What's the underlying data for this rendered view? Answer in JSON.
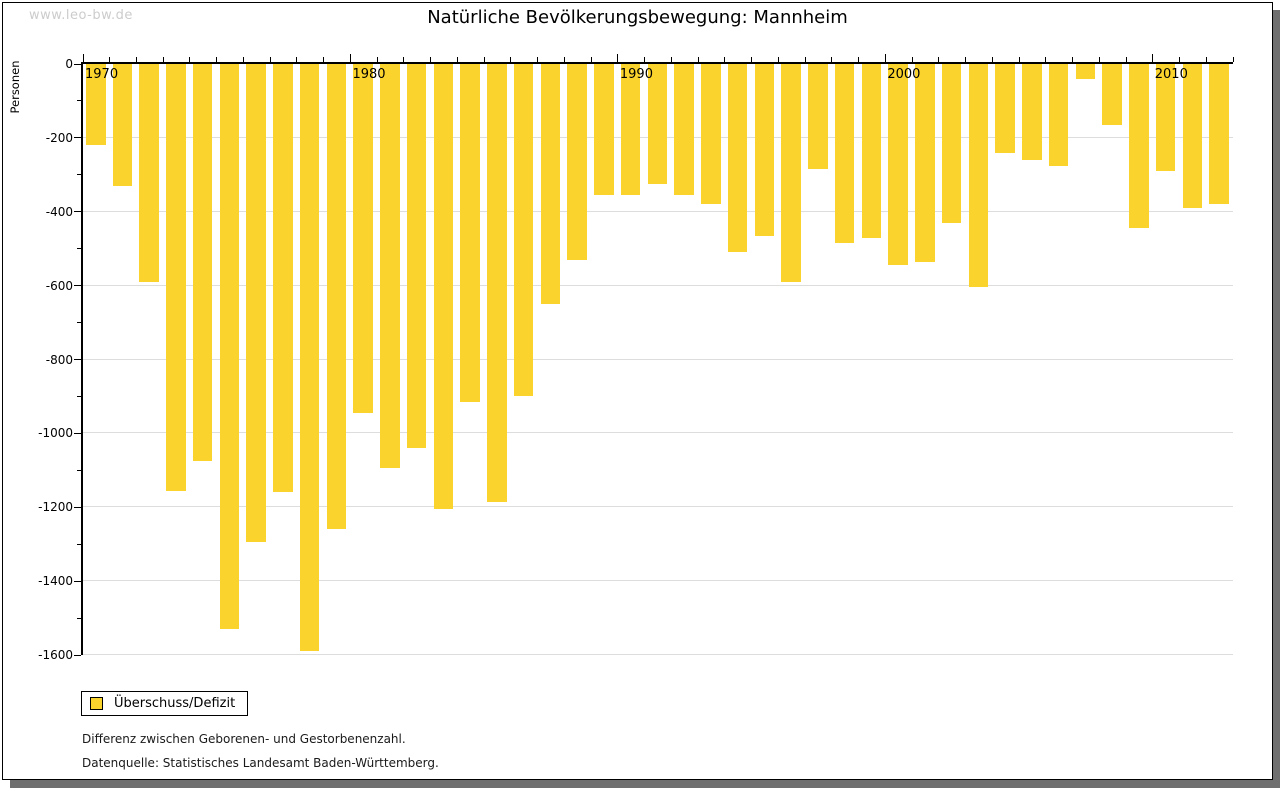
{
  "watermark": "www.leo-bw.de",
  "title": "Natürliche Bevölkerungsbewegung: Mannheim",
  "legend": {
    "label": "Überschuss/Defizit"
  },
  "footnotes": [
    "Differenz zwischen Geborenen- und Gestorbenenzahl.",
    "Datenquelle: Statistisches Landesamt Baden-Württemberg."
  ],
  "colors": {
    "bar": "#fbd32d",
    "grid": "#dddddd",
    "axis": "#000000",
    "text": "#000000",
    "watermark_text": "#cccccc",
    "panel_shadow": "#6f6f6f",
    "background": "#ffffff"
  },
  "chart_data": {
    "type": "bar",
    "title": "Natürliche Bevölkerungsbewegung: Mannheim",
    "xlabel": "",
    "ylabel": "Personen",
    "series_name": "Überschuss/Defizit",
    "ylim": [
      -1600,
      0
    ],
    "y_tick_step": 200,
    "y_minor_tick_step": 100,
    "x_labeled_ticks": [
      1970,
      1980,
      1990,
      2000,
      2010
    ],
    "grid": "horizontal",
    "legend_position": "bottom-left",
    "categories": [
      1970,
      1971,
      1972,
      1973,
      1974,
      1975,
      1976,
      1977,
      1978,
      1979,
      1980,
      1981,
      1982,
      1983,
      1984,
      1985,
      1986,
      1987,
      1988,
      1989,
      1990,
      1991,
      1992,
      1993,
      1994,
      1995,
      1996,
      1997,
      1998,
      1999,
      2000,
      2001,
      2002,
      2003,
      2004,
      2005,
      2006,
      2007,
      2008,
      2009,
      2010,
      2011,
      2012
    ],
    "values": [
      -220,
      -330,
      -590,
      -1155,
      -1075,
      -1530,
      -1295,
      -1160,
      -1590,
      -1260,
      -945,
      -1095,
      -1040,
      -1205,
      -915,
      -1185,
      -900,
      -650,
      -530,
      -355,
      -355,
      -325,
      -355,
      -380,
      -510,
      -465,
      -590,
      -285,
      -485,
      -470,
      -545,
      -535,
      -430,
      -605,
      -240,
      -260,
      -275,
      -40,
      -165,
      -445,
      -290,
      -390,
      -380
    ]
  }
}
